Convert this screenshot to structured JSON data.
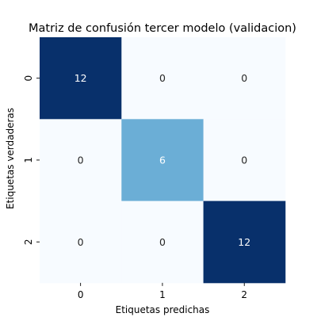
{
  "chart_data": {
    "type": "heatmap",
    "title": "Matriz de confusión tercer modelo (validacion)",
    "xlabel": "Etiquetas predichas",
    "ylabel": "Etiquetas verdaderas",
    "x_categories": [
      "0",
      "1",
      "2"
    ],
    "y_categories": [
      "0",
      "1",
      "2"
    ],
    "values": [
      [
        12,
        0,
        0
      ],
      [
        0,
        6,
        0
      ],
      [
        0,
        0,
        12
      ]
    ],
    "colormap": "Blues",
    "vmin": 0,
    "vmax": 12,
    "colorbar": false,
    "grid": false,
    "colors": {
      "low": "#f7fbff",
      "mid": "#6baed6",
      "high": "#08306b",
      "text_dark": "#262626",
      "text_light": "#ffffff"
    }
  }
}
